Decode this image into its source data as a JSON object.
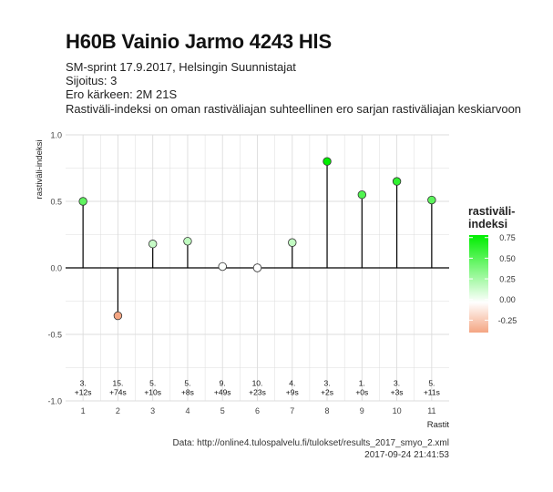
{
  "header": {
    "title": "H60B Vainio Jarmo 4243 HlS",
    "subtitle_lines": [
      "SM-sprint 17.9.2017, Helsingin Suunnistajat",
      "Sijoitus: 3",
      "Ero kärkeen: 2M 21S",
      "Rastiväli-indeksi on oman rastiväliajan suhteellinen ero sarjan rastiväliajan keskiarvoon"
    ]
  },
  "caption": {
    "source": "Data: http://online4.tulospalvelu.fi/tulokset/results_2017_smyo_2.xml",
    "timestamp": "2017-09-24 21:41:53"
  },
  "legend": {
    "title_line1": "rastiväli-",
    "title_line2": "indeksi",
    "ticks": [
      0.75,
      0.5,
      0.25,
      0.0,
      -0.25
    ],
    "tick_labels": [
      "0.75",
      "0.50",
      "0.25",
      "0.00",
      "-0.25"
    ]
  },
  "colors": {
    "positive_max": "#00ee00",
    "neutral": "#ffffff",
    "negative": "#f4a582",
    "grid": "#dcdcdc",
    "zero_line": "#000000"
  },
  "chart_data": {
    "type": "scatter",
    "style": "lollipop",
    "xlabel": "Rastit",
    "ylabel": "rastiväli-indeksi",
    "x": [
      1,
      2,
      3,
      4,
      5,
      6,
      7,
      8,
      9,
      10,
      11
    ],
    "y": [
      0.5,
      -0.36,
      0.18,
      0.2,
      0.01,
      0.0,
      0.19,
      0.8,
      0.55,
      0.65,
      0.51
    ],
    "ylim": [
      -1.0,
      1.0
    ],
    "xlim": [
      0.5,
      11.5
    ],
    "yticks": [
      -1.0,
      -0.5,
      0.0,
      0.5,
      1.0
    ],
    "ytick_labels": [
      "-1.0",
      "-0.5",
      "0.0",
      "0.5",
      "1.0"
    ],
    "xticks": [
      1,
      2,
      3,
      4,
      5,
      6,
      7,
      8,
      9,
      10,
      11
    ],
    "xtick_labels": [
      "1",
      "2",
      "3",
      "4",
      "5",
      "6",
      "7",
      "8",
      "9",
      "10",
      "11"
    ],
    "annotations": [
      {
        "x": 1,
        "rank": "3.",
        "diff": "+12s"
      },
      {
        "x": 2,
        "rank": "15.",
        "diff": "+74s"
      },
      {
        "x": 3,
        "rank": "5.",
        "diff": "+10s"
      },
      {
        "x": 4,
        "rank": "5.",
        "diff": "+8s"
      },
      {
        "x": 5,
        "rank": "9.",
        "diff": "+49s"
      },
      {
        "x": 6,
        "rank": "10.",
        "diff": "+23s"
      },
      {
        "x": 7,
        "rank": "4.",
        "diff": "+9s"
      },
      {
        "x": 8,
        "rank": "3.",
        "diff": "+2s"
      },
      {
        "x": 9,
        "rank": "1.",
        "diff": "+0s"
      },
      {
        "x": 10,
        "rank": "3.",
        "diff": "+3s"
      },
      {
        "x": 11,
        "rank": "5.",
        "diff": "+11s"
      }
    ],
    "annotation_y": -0.9,
    "grid": true,
    "legend_placement": "right"
  }
}
